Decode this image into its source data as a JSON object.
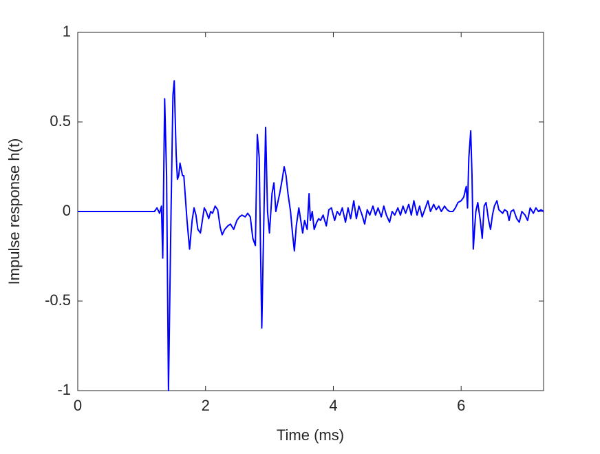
{
  "chart_data": {
    "type": "line",
    "xlabel": "Time (ms)",
    "ylabel": "Impulse response h(t)",
    "color": "#0000ff",
    "xlim": [
      0,
      7.29
    ],
    "ylim": [
      -1,
      1
    ],
    "xticks": [
      0,
      2,
      4,
      6
    ],
    "yticks": [
      -1,
      -0.5,
      0,
      0.5,
      1
    ],
    "grid": false,
    "x": [
      0,
      0.5,
      1.0,
      1.2,
      1.24,
      1.28,
      1.31,
      1.33,
      1.36,
      1.39,
      1.42,
      1.46,
      1.49,
      1.51,
      1.54,
      1.56,
      1.58,
      1.6,
      1.64,
      1.66,
      1.68,
      1.71,
      1.75,
      1.79,
      1.82,
      1.85,
      1.88,
      1.92,
      1.95,
      1.98,
      2.01,
      2.05,
      2.08,
      2.11,
      2.15,
      2.19,
      2.23,
      2.26,
      2.3,
      2.35,
      2.39,
      2.44,
      2.49,
      2.53,
      2.57,
      2.62,
      2.66,
      2.7,
      2.74,
      2.78,
      2.81,
      2.84,
      2.86,
      2.88,
      2.92,
      2.94,
      2.97,
      3.0,
      3.04,
      3.07,
      3.1,
      3.13,
      3.16,
      3.2,
      3.23,
      3.26,
      3.29,
      3.33,
      3.36,
      3.39,
      3.42,
      3.46,
      3.49,
      3.52,
      3.55,
      3.59,
      3.62,
      3.64,
      3.67,
      3.7,
      3.74,
      3.77,
      3.8,
      3.84,
      3.89,
      3.93,
      3.97,
      4.02,
      4.06,
      4.1,
      4.14,
      4.19,
      4.23,
      4.27,
      4.32,
      4.36,
      4.4,
      4.45,
      4.49,
      4.53,
      4.57,
      4.62,
      4.66,
      4.7,
      4.75,
      4.79,
      4.83,
      4.88,
      4.92,
      4.96,
      5.01,
      5.05,
      5.09,
      5.13,
      5.18,
      5.22,
      5.26,
      5.31,
      5.35,
      5.39,
      5.44,
      5.48,
      5.52,
      5.57,
      5.61,
      5.65,
      5.69,
      5.74,
      5.78,
      5.82,
      5.87,
      5.91,
      5.95,
      6.0,
      6.04,
      6.08,
      6.1,
      6.12,
      6.15,
      6.17,
      6.19,
      6.21,
      6.23,
      6.26,
      6.3,
      6.33,
      6.36,
      6.39,
      6.43,
      6.46,
      6.49,
      6.52,
      6.56,
      6.59,
      6.62,
      6.65,
      6.68,
      6.72,
      6.75,
      6.78,
      6.82,
      6.87,
      6.91,
      6.95,
      7.0,
      7.04,
      7.08,
      7.13,
      7.17,
      7.21,
      7.25,
      7.29
    ],
    "values": [
      0,
      0,
      0,
      0,
      0.02,
      -0.01,
      0.03,
      -0.26,
      0.63,
      0.2,
      -1.0,
      0,
      0.65,
      0.73,
      0.32,
      0.18,
      0.2,
      0.27,
      0.2,
      0.2,
      0.1,
      -0.05,
      -0.21,
      -0.05,
      0.02,
      -0.02,
      -0.1,
      -0.12,
      -0.05,
      0.02,
      0,
      -0.04,
      0,
      -0.01,
      0.03,
      0.01,
      -0.09,
      -0.13,
      -0.1,
      -0.08,
      -0.07,
      -0.1,
      -0.05,
      -0.03,
      -0.02,
      -0.03,
      -0.01,
      -0.03,
      -0.15,
      -0.19,
      0.43,
      0.3,
      -0.2,
      -0.65,
      0.1,
      0.47,
      0,
      -0.12,
      0.1,
      0.16,
      0,
      0.05,
      0.1,
      0.18,
      0.25,
      0.2,
      0.1,
      0,
      -0.12,
      -0.22,
      -0.08,
      0.02,
      -0.05,
      -0.12,
      -0.05,
      -0.1,
      0.1,
      -0.05,
      0,
      -0.1,
      -0.06,
      -0.04,
      -0.05,
      -0.02,
      -0.08,
      0.01,
      0.02,
      -0.05,
      0,
      -0.02,
      0.02,
      -0.06,
      0.02,
      -0.04,
      0.06,
      -0.04,
      0.03,
      -0.02,
      -0.07,
      0.01,
      -0.02,
      0.03,
      -0.02,
      0.02,
      -0.03,
      0.03,
      -0.02,
      -0.06,
      0,
      -0.02,
      0.02,
      -0.02,
      0.03,
      -0.01,
      0.04,
      -0.02,
      0.06,
      -0.02,
      0.03,
      -0.03,
      0.02,
      0.06,
      0,
      0.04,
      0.01,
      0.03,
      0,
      0.03,
      0.01,
      0,
      0,
      0.02,
      0.05,
      0.06,
      0.08,
      0.14,
      0.02,
      0.3,
      0.45,
      0.2,
      -0.21,
      -0.1,
      0,
      0.05,
      -0.05,
      -0.15,
      0.03,
      0.05,
      -0.05,
      -0.1,
      -0.02,
      0.03,
      0.06,
      0.01,
      0,
      -0.01,
      0.01,
      0,
      -0.05,
      0,
      0.01,
      -0.04,
      -0.06,
      0,
      -0.02,
      -0.05,
      0.02,
      -0.01,
      0.02,
      0,
      0.01,
      0
    ]
  }
}
